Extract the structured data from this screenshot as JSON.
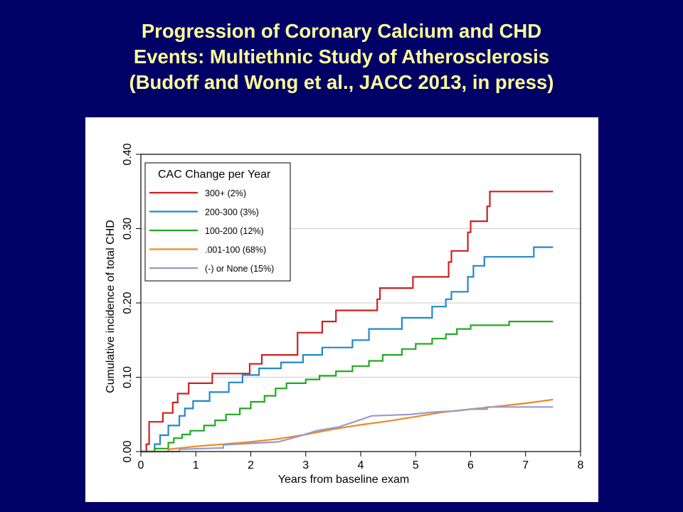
{
  "slide": {
    "title_lines": [
      "Progression of Coronary Calcium and CHD",
      "Events: Multiethnic Study of Atherosclerosis",
      "(Budoff and Wong et al., JACC 2013, in press)"
    ],
    "title_color": "#ffff99",
    "background": "#000066"
  },
  "chart_data": {
    "type": "line",
    "line_style": "step",
    "xlabel": "Years from baseline exam",
    "ylabel": "Cumulative incidence of total CHD",
    "xlim": [
      0,
      8
    ],
    "ylim": [
      0,
      0.4
    ],
    "x_ticks": [
      0,
      1,
      2,
      3,
      4,
      5,
      6,
      7,
      8
    ],
    "x_tick_labels": [
      "0",
      "1",
      "2",
      "3",
      "4",
      "5",
      "6",
      "7",
      "8"
    ],
    "y_ticks": [
      0,
      0.1,
      0.2,
      0.3,
      0.4
    ],
    "y_tick_labels": [
      "0.00",
      "0.10",
      "0.20",
      "0.30",
      "0.40"
    ],
    "grid": "horizontal",
    "legend_title": "CAC Change per Year",
    "legend_position": "top-left",
    "series": [
      {
        "name": "300+ (2%)",
        "color": "#cc2222",
        "points": [
          [
            0,
            0
          ],
          [
            0.1,
            0
          ],
          [
            0.1,
            0.01
          ],
          [
            0.15,
            0.01
          ],
          [
            0.15,
            0.04
          ],
          [
            0.4,
            0.04
          ],
          [
            0.4,
            0.052
          ],
          [
            0.58,
            0.052
          ],
          [
            0.58,
            0.066
          ],
          [
            0.67,
            0.066
          ],
          [
            0.67,
            0.078
          ],
          [
            0.87,
            0.078
          ],
          [
            0.87,
            0.092
          ],
          [
            1.3,
            0.092
          ],
          [
            1.3,
            0.105
          ],
          [
            1.98,
            0.105
          ],
          [
            1.98,
            0.118
          ],
          [
            2.2,
            0.118
          ],
          [
            2.2,
            0.13
          ],
          [
            2.85,
            0.13
          ],
          [
            2.85,
            0.16
          ],
          [
            3.3,
            0.16
          ],
          [
            3.3,
            0.175
          ],
          [
            3.55,
            0.175
          ],
          [
            3.55,
            0.19
          ],
          [
            4.3,
            0.19
          ],
          [
            4.3,
            0.205
          ],
          [
            4.35,
            0.205
          ],
          [
            4.35,
            0.22
          ],
          [
            4.95,
            0.22
          ],
          [
            4.95,
            0.235
          ],
          [
            5.6,
            0.235
          ],
          [
            5.6,
            0.255
          ],
          [
            5.65,
            0.255
          ],
          [
            5.65,
            0.27
          ],
          [
            5.95,
            0.27
          ],
          [
            5.95,
            0.295
          ],
          [
            6.0,
            0.295
          ],
          [
            6.0,
            0.31
          ],
          [
            6.3,
            0.31
          ],
          [
            6.3,
            0.33
          ],
          [
            6.35,
            0.33
          ],
          [
            6.35,
            0.35
          ],
          [
            7.5,
            0.35
          ]
        ]
      },
      {
        "name": "200-300 (3%)",
        "color": "#2288cc",
        "points": [
          [
            0,
            0
          ],
          [
            0.25,
            0
          ],
          [
            0.25,
            0.01
          ],
          [
            0.35,
            0.01
          ],
          [
            0.35,
            0.022
          ],
          [
            0.5,
            0.022
          ],
          [
            0.5,
            0.035
          ],
          [
            0.7,
            0.035
          ],
          [
            0.7,
            0.048
          ],
          [
            0.8,
            0.048
          ],
          [
            0.8,
            0.058
          ],
          [
            0.95,
            0.058
          ],
          [
            0.95,
            0.068
          ],
          [
            1.25,
            0.068
          ],
          [
            1.25,
            0.08
          ],
          [
            1.6,
            0.08
          ],
          [
            1.6,
            0.093
          ],
          [
            1.85,
            0.093
          ],
          [
            1.85,
            0.103
          ],
          [
            2.15,
            0.103
          ],
          [
            2.15,
            0.112
          ],
          [
            2.55,
            0.112
          ],
          [
            2.55,
            0.12
          ],
          [
            2.95,
            0.12
          ],
          [
            2.95,
            0.13
          ],
          [
            3.3,
            0.13
          ],
          [
            3.3,
            0.14
          ],
          [
            3.85,
            0.14
          ],
          [
            3.85,
            0.15
          ],
          [
            4.15,
            0.15
          ],
          [
            4.15,
            0.165
          ],
          [
            4.75,
            0.165
          ],
          [
            4.75,
            0.18
          ],
          [
            5.3,
            0.18
          ],
          [
            5.3,
            0.195
          ],
          [
            5.55,
            0.195
          ],
          [
            5.55,
            0.205
          ],
          [
            5.65,
            0.205
          ],
          [
            5.65,
            0.215
          ],
          [
            5.95,
            0.215
          ],
          [
            5.95,
            0.235
          ],
          [
            6.05,
            0.235
          ],
          [
            6.05,
            0.25
          ],
          [
            6.25,
            0.25
          ],
          [
            6.25,
            0.262
          ],
          [
            7.15,
            0.262
          ],
          [
            7.15,
            0.275
          ],
          [
            7.5,
            0.275
          ]
        ]
      },
      {
        "name": "100-200 (12%)",
        "color": "#22aa22",
        "points": [
          [
            0,
            0
          ],
          [
            0.25,
            0
          ],
          [
            0.25,
            0.004
          ],
          [
            0.5,
            0.004
          ],
          [
            0.5,
            0.012
          ],
          [
            0.6,
            0.012
          ],
          [
            0.6,
            0.018
          ],
          [
            0.75,
            0.018
          ],
          [
            0.75,
            0.023
          ],
          [
            0.9,
            0.023
          ],
          [
            0.9,
            0.028
          ],
          [
            1.15,
            0.028
          ],
          [
            1.15,
            0.035
          ],
          [
            1.35,
            0.035
          ],
          [
            1.35,
            0.042
          ],
          [
            1.55,
            0.042
          ],
          [
            1.55,
            0.05
          ],
          [
            1.8,
            0.05
          ],
          [
            1.8,
            0.058
          ],
          [
            2.0,
            0.058
          ],
          [
            2.0,
            0.067
          ],
          [
            2.25,
            0.067
          ],
          [
            2.25,
            0.075
          ],
          [
            2.45,
            0.075
          ],
          [
            2.45,
            0.085
          ],
          [
            2.65,
            0.085
          ],
          [
            2.65,
            0.092
          ],
          [
            3.0,
            0.092
          ],
          [
            3.0,
            0.097
          ],
          [
            3.25,
            0.097
          ],
          [
            3.25,
            0.102
          ],
          [
            3.55,
            0.102
          ],
          [
            3.55,
            0.108
          ],
          [
            3.85,
            0.108
          ],
          [
            3.85,
            0.115
          ],
          [
            4.15,
            0.115
          ],
          [
            4.15,
            0.122
          ],
          [
            4.4,
            0.122
          ],
          [
            4.4,
            0.13
          ],
          [
            4.75,
            0.13
          ],
          [
            4.75,
            0.138
          ],
          [
            5.0,
            0.138
          ],
          [
            5.0,
            0.145
          ],
          [
            5.3,
            0.145
          ],
          [
            5.3,
            0.152
          ],
          [
            5.55,
            0.152
          ],
          [
            5.55,
            0.158
          ],
          [
            5.75,
            0.158
          ],
          [
            5.75,
            0.165
          ],
          [
            6.0,
            0.165
          ],
          [
            6.0,
            0.17
          ],
          [
            6.7,
            0.17
          ],
          [
            6.7,
            0.175
          ],
          [
            7.5,
            0.175
          ]
        ]
      },
      {
        "name": ".001-100 (68%)",
        "color": "#ee8822",
        "points": [
          [
            0,
            0
          ],
          [
            0.5,
            0
          ],
          [
            0.5,
            0.003
          ],
          [
            1.0,
            0.007
          ],
          [
            1.5,
            0.01
          ],
          [
            2.0,
            0.013
          ],
          [
            2.5,
            0.017
          ],
          [
            3.0,
            0.023
          ],
          [
            3.5,
            0.03
          ],
          [
            4.0,
            0.036
          ],
          [
            4.5,
            0.041
          ],
          [
            5.0,
            0.047
          ],
          [
            5.5,
            0.053
          ],
          [
            6.0,
            0.057
          ],
          [
            6.5,
            0.061
          ],
          [
            7.0,
            0.065
          ],
          [
            7.5,
            0.07
          ]
        ]
      },
      {
        "name": "(-) or None (15%)",
        "color": "#9999cc",
        "points": [
          [
            0,
            0
          ],
          [
            0.7,
            0
          ],
          [
            0.7,
            0.003
          ],
          [
            1.5,
            0.005
          ],
          [
            1.5,
            0.009
          ],
          [
            2.5,
            0.013
          ],
          [
            2.85,
            0.02
          ],
          [
            3.2,
            0.028
          ],
          [
            3.6,
            0.033
          ],
          [
            4.0,
            0.043
          ],
          [
            4.2,
            0.048
          ],
          [
            4.9,
            0.05
          ],
          [
            5.3,
            0.053
          ],
          [
            5.8,
            0.055
          ],
          [
            6.0,
            0.057
          ],
          [
            6.3,
            0.057
          ],
          [
            6.3,
            0.06
          ],
          [
            7.5,
            0.06
          ]
        ]
      }
    ]
  }
}
